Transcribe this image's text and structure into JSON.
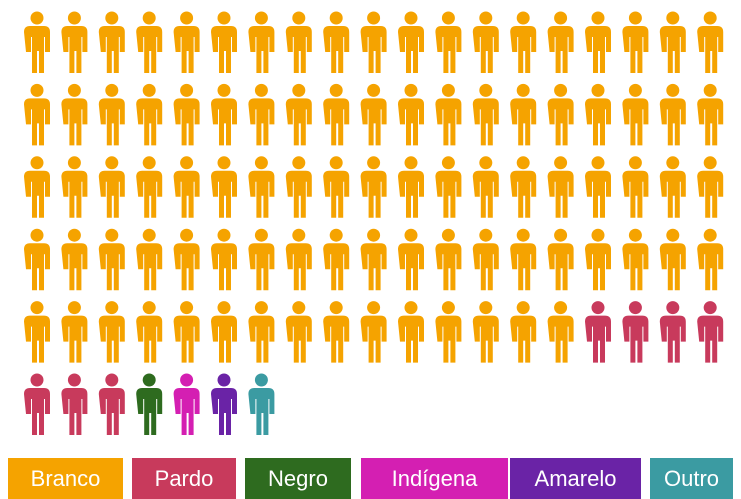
{
  "chart_data": {
    "type": "pictograph",
    "categories": [
      "Branco",
      "Pardo",
      "Negro",
      "Indígena",
      "Amarelo",
      "Outro"
    ],
    "values": [
      91,
      7,
      1,
      1,
      1,
      1
    ],
    "colors": [
      "#f5a300",
      "#c83a5c",
      "#2e6b1f",
      "#d41fb2",
      "#6a23a6",
      "#3b9ba2"
    ]
  }
}
